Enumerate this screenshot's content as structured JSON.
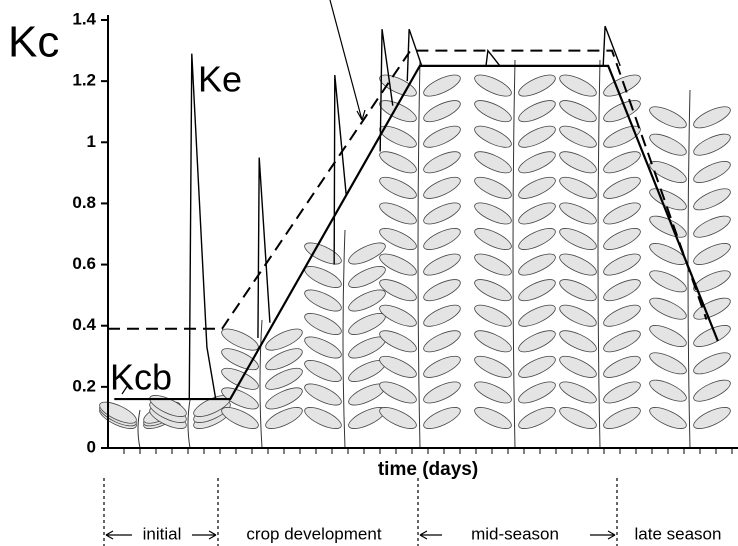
{
  "chart_data": {
    "type": "line",
    "y_label": "Kc",
    "x_label": "time (days)",
    "xlim": [
      0,
      100
    ],
    "ylim": [
      0,
      1.4
    ],
    "yticks": [
      0,
      0.2,
      0.4,
      0.6,
      0.8,
      1,
      1.2,
      1.4
    ],
    "stages": [
      "initial",
      "crop development",
      "mid-season",
      "late season"
    ],
    "series": [
      {
        "name": "Kcb",
        "color": "#000000",
        "style": "solid",
        "width": 2.2,
        "x": [
          1,
          19.4,
          49.5,
          79.4,
          96.8
        ],
        "values": [
          0.16,
          0.16,
          1.25,
          1.25,
          0.35
        ]
      },
      {
        "name": "Kc",
        "color": "#000000",
        "style": "dashed",
        "width": 2,
        "x": [
          0,
          18.1,
          48,
          80,
          95
        ],
        "values": [
          0.39,
          0.39,
          1.3,
          1.3,
          0.42
        ]
      },
      {
        "name": "Ke",
        "color": "#000000",
        "style": "solid",
        "width": 1.4,
        "x": [
          12.9,
          13.3,
          15.7,
          17.1,
          null,
          23.8,
          24.0,
          25.7,
          null,
          35.9,
          36.0,
          37.8,
          null,
          43.2,
          43.5,
          45.2,
          null,
          47.5,
          47.8,
          49.8,
          null,
          60.0,
          60.3,
          62.2,
          null,
          78.6,
          78.9,
          81.3
        ],
        "values": [
          0.16,
          1.29,
          0.33,
          0.16,
          null,
          0.36,
          0.95,
          0.41,
          null,
          0.6,
          1.22,
          0.83,
          null,
          0.97,
          1.37,
          1.12,
          null,
          1.2,
          1.37,
          1.25,
          null,
          1.25,
          1.3,
          1.25,
          null,
          1.25,
          1.38,
          1.25
        ]
      }
    ]
  }
}
